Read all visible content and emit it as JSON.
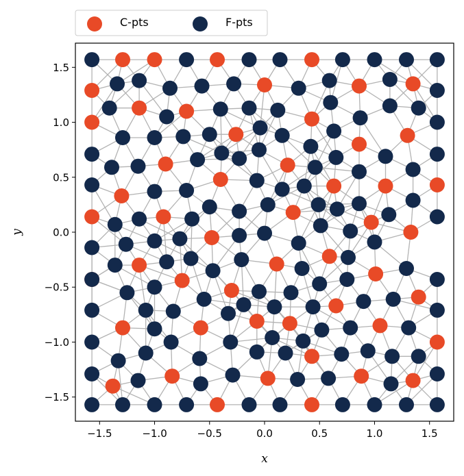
{
  "chart_data": {
    "type": "scatter",
    "title": "",
    "xlabel": "x",
    "ylabel": "y",
    "xlim": [
      -1.72,
      1.72
    ],
    "ylim": [
      -1.72,
      1.72
    ],
    "x_ticks": [
      -1.5,
      -1.0,
      -0.5,
      0.0,
      0.5,
      1.0,
      1.5
    ],
    "y_ticks": [
      -1.5,
      -1.0,
      -0.5,
      0.0,
      0.5,
      1.0,
      1.5
    ],
    "x_tick_labels": [
      "−1.5",
      "−1.0",
      "−0.5",
      "0.0",
      "0.5",
      "1.0",
      "1.5"
    ],
    "y_tick_labels": [
      "−1.5",
      "−1.0",
      "−0.5",
      "0.0",
      "0.5",
      "1.0",
      "1.5"
    ],
    "grid": false,
    "legend_position": "top-left, above plot",
    "edge_color": "#b3b3b3",
    "series": [
      {
        "name": "C-pts",
        "color": "#e84a27",
        "points": [
          [
            -1.29,
            1.57
          ],
          [
            -1.0,
            1.57
          ],
          [
            -0.43,
            1.57
          ],
          [
            0.43,
            1.57
          ],
          [
            -1.57,
            1.29
          ],
          [
            0.0,
            1.34
          ],
          [
            0.86,
            1.33
          ],
          [
            1.35,
            1.35
          ],
          [
            -1.14,
            1.13
          ],
          [
            -0.71,
            1.1
          ],
          [
            0.43,
            1.03
          ],
          [
            -1.57,
            1.0
          ],
          [
            -0.26,
            0.89
          ],
          [
            1.3,
            0.88
          ],
          [
            0.86,
            0.8
          ],
          [
            -0.9,
            0.62
          ],
          [
            0.21,
            0.61
          ],
          [
            -0.4,
            0.48
          ],
          [
            0.63,
            0.42
          ],
          [
            1.1,
            0.42
          ],
          [
            1.57,
            0.43
          ],
          [
            -1.3,
            0.33
          ],
          [
            0.26,
            0.18
          ],
          [
            -1.57,
            0.14
          ],
          [
            -0.92,
            0.14
          ],
          [
            0.97,
            0.09
          ],
          [
            1.33,
            0.0
          ],
          [
            -0.48,
            -0.05
          ],
          [
            0.59,
            -0.22
          ],
          [
            -1.14,
            -0.3
          ],
          [
            0.11,
            -0.29
          ],
          [
            -0.75,
            -0.44
          ],
          [
            1.01,
            -0.38
          ],
          [
            -1.57,
            -0.43
          ],
          [
            -0.3,
            -0.53
          ],
          [
            1.4,
            -0.59
          ],
          [
            0.65,
            -0.67
          ],
          [
            -0.07,
            -0.81
          ],
          [
            0.23,
            -0.83
          ],
          [
            1.05,
            -0.85
          ],
          [
            -1.29,
            -0.87
          ],
          [
            -0.58,
            -0.87
          ],
          [
            1.57,
            -1.0
          ],
          [
            0.43,
            -1.13
          ],
          [
            -0.84,
            -1.31
          ],
          [
            0.03,
            -1.33
          ],
          [
            0.88,
            -1.31
          ],
          [
            1.35,
            -1.35
          ],
          [
            -1.38,
            -1.4
          ],
          [
            -0.43,
            -1.57
          ],
          [
            0.43,
            -1.57
          ]
        ]
      },
      {
        "name": "F-pts",
        "color": "#13294b",
        "points": [
          [
            -1.57,
            1.57
          ],
          [
            -0.71,
            1.57
          ],
          [
            -0.14,
            1.57
          ],
          [
            0.14,
            1.57
          ],
          [
            0.71,
            1.57
          ],
          [
            1.0,
            1.57
          ],
          [
            1.29,
            1.57
          ],
          [
            1.57,
            1.57
          ],
          [
            -1.34,
            1.35
          ],
          [
            -1.14,
            1.38
          ],
          [
            -0.86,
            1.31
          ],
          [
            -0.57,
            1.33
          ],
          [
            -0.28,
            1.35
          ],
          [
            0.31,
            1.31
          ],
          [
            0.59,
            1.38
          ],
          [
            1.14,
            1.39
          ],
          [
            1.57,
            1.29
          ],
          [
            -1.41,
            1.13
          ],
          [
            -0.89,
            1.05
          ],
          [
            -0.4,
            1.12
          ],
          [
            -0.14,
            1.13
          ],
          [
            0.12,
            1.11
          ],
          [
            0.6,
            1.18
          ],
          [
            1.14,
            1.15
          ],
          [
            1.4,
            1.13
          ],
          [
            -1.29,
            0.86
          ],
          [
            -1.0,
            0.86
          ],
          [
            -0.74,
            0.87
          ],
          [
            -0.5,
            0.89
          ],
          [
            -0.04,
            0.95
          ],
          [
            0.16,
            0.88
          ],
          [
            0.63,
            0.92
          ],
          [
            0.87,
            1.04
          ],
          [
            1.57,
            1.0
          ],
          [
            -1.57,
            0.71
          ],
          [
            -0.39,
            0.72
          ],
          [
            -0.05,
            0.75
          ],
          [
            0.42,
            0.78
          ],
          [
            0.65,
            0.68
          ],
          [
            1.1,
            0.69
          ],
          [
            1.57,
            0.71
          ],
          [
            -1.39,
            0.59
          ],
          [
            -1.15,
            0.6
          ],
          [
            -0.61,
            0.66
          ],
          [
            -0.23,
            0.67
          ],
          [
            0.46,
            0.59
          ],
          [
            0.86,
            0.55
          ],
          [
            1.35,
            0.57
          ],
          [
            -1.57,
            0.43
          ],
          [
            -1.0,
            0.37
          ],
          [
            -0.71,
            0.38
          ],
          [
            -0.07,
            0.47
          ],
          [
            0.16,
            0.39
          ],
          [
            0.36,
            0.42
          ],
          [
            1.35,
            0.29
          ],
          [
            -0.5,
            0.23
          ],
          [
            -0.23,
            0.19
          ],
          [
            0.03,
            0.25
          ],
          [
            0.49,
            0.25
          ],
          [
            0.66,
            0.21
          ],
          [
            0.86,
            0.26
          ],
          [
            1.13,
            0.16
          ],
          [
            -1.36,
            0.07
          ],
          [
            -1.14,
            0.12
          ],
          [
            -0.66,
            0.12
          ],
          [
            0.51,
            0.06
          ],
          [
            1.57,
            0.14
          ],
          [
            -1.57,
            -0.14
          ],
          [
            -1.26,
            -0.11
          ],
          [
            -1.0,
            -0.08
          ],
          [
            -0.77,
            -0.06
          ],
          [
            -0.23,
            -0.03
          ],
          [
            0.0,
            -0.01
          ],
          [
            0.31,
            -0.1
          ],
          [
            0.78,
            0.01
          ],
          [
            1.0,
            -0.09
          ],
          [
            -1.36,
            -0.3
          ],
          [
            -0.89,
            -0.27
          ],
          [
            -0.67,
            -0.24
          ],
          [
            -0.47,
            -0.35
          ],
          [
            -0.21,
            -0.25
          ],
          [
            0.34,
            -0.33
          ],
          [
            0.76,
            -0.23
          ],
          [
            1.29,
            -0.33
          ],
          [
            -1.57,
            -0.43
          ],
          [
            -1.25,
            -0.55
          ],
          [
            -1.0,
            -0.5
          ],
          [
            -0.55,
            -0.61
          ],
          [
            -0.05,
            -0.54
          ],
          [
            0.24,
            -0.55
          ],
          [
            0.5,
            -0.47
          ],
          [
            0.75,
            -0.43
          ],
          [
            1.57,
            -0.43
          ],
          [
            -1.57,
            -0.71
          ],
          [
            -1.08,
            -0.71
          ],
          [
            -0.83,
            -0.72
          ],
          [
            -0.33,
            -0.74
          ],
          [
            -0.19,
            -0.66
          ],
          [
            0.09,
            -0.68
          ],
          [
            0.44,
            -0.68
          ],
          [
            0.9,
            -0.63
          ],
          [
            1.17,
            -0.61
          ],
          [
            1.57,
            -0.71
          ],
          [
            -1.0,
            -0.88
          ],
          [
            0.52,
            -0.89
          ],
          [
            0.78,
            -0.87
          ],
          [
            1.31,
            -0.87
          ],
          [
            -1.57,
            -1.0
          ],
          [
            -0.85,
            -1.0
          ],
          [
            -0.31,
            -1.0
          ],
          [
            0.07,
            -0.96
          ],
          [
            0.35,
            -0.99
          ],
          [
            -1.33,
            -1.17
          ],
          [
            -1.08,
            -1.1
          ],
          [
            -0.59,
            -1.15
          ],
          [
            -0.07,
            -1.09
          ],
          [
            0.19,
            -1.1
          ],
          [
            0.7,
            -1.11
          ],
          [
            0.94,
            -1.08
          ],
          [
            1.16,
            -1.13
          ],
          [
            1.4,
            -1.13
          ],
          [
            -1.57,
            -1.29
          ],
          [
            -1.15,
            -1.35
          ],
          [
            -0.58,
            -1.38
          ],
          [
            -0.29,
            -1.3
          ],
          [
            0.3,
            -1.34
          ],
          [
            0.58,
            -1.33
          ],
          [
            1.15,
            -1.38
          ],
          [
            1.57,
            -1.29
          ],
          [
            -1.57,
            -1.57
          ],
          [
            -1.29,
            -1.57
          ],
          [
            -1.0,
            -1.57
          ],
          [
            -0.71,
            -1.57
          ],
          [
            -0.14,
            -1.57
          ],
          [
            0.14,
            -1.57
          ],
          [
            0.71,
            -1.57
          ],
          [
            1.0,
            -1.57
          ],
          [
            1.29,
            -1.57
          ],
          [
            1.57,
            -1.57
          ]
        ]
      }
    ]
  }
}
